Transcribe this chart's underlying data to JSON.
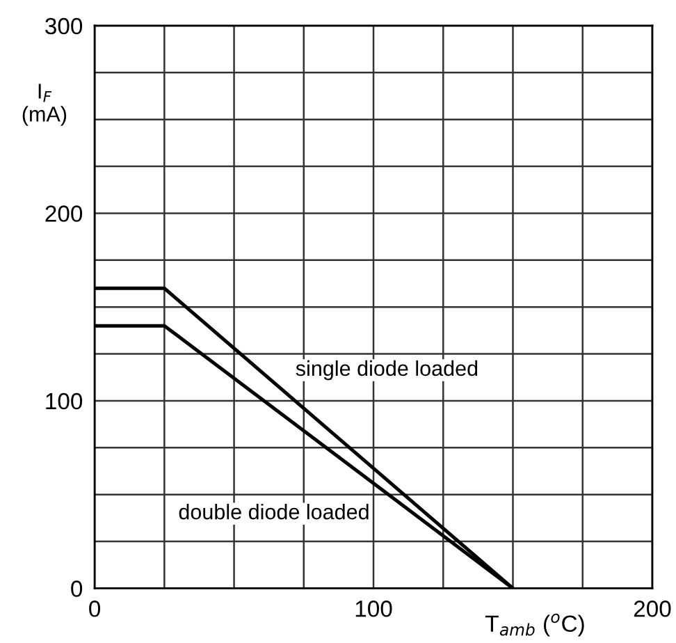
{
  "chart_data": {
    "type": "line",
    "xlabel": "T$_{amb}$ ($^{o}$C)",
    "ylabel": "I$_{F}$\n(mA)",
    "xlim": [
      0,
      200
    ],
    "ylim": [
      0,
      300
    ],
    "xticks": [
      0,
      {
        "value": 25,
        "label": null
      },
      {
        "value": 50,
        "label": null
      },
      {
        "value": 75,
        "label": null
      },
      100,
      {
        "value": 125,
        "label": null
      },
      {
        "value": 150,
        "label": null
      },
      {
        "value": 175,
        "label": null
      },
      200
    ],
    "yticks": [
      0,
      {
        "value": 25,
        "label": null
      },
      {
        "value": 50,
        "label": null
      },
      {
        "value": 75,
        "label": null
      },
      100,
      {
        "value": 125,
        "label": null
      },
      {
        "value": 150,
        "label": null
      },
      {
        "value": 175,
        "label": null
      },
      200,
      {
        "value": 225,
        "label": null
      },
      {
        "value": 250,
        "label": null
      },
      {
        "value": 275,
        "label": null
      },
      300
    ],
    "grid": true,
    "marker": "none",
    "line_style": "solid",
    "legend": false,
    "series": [
      {
        "name": "single diode loaded",
        "color": "#000000",
        "x": [
          0,
          25,
          150
        ],
        "values": [
          160,
          160,
          0
        ]
      },
      {
        "name": "double diode loaded",
        "color": "#000000",
        "x": [
          0,
          25,
          150
        ],
        "values": [
          140,
          140,
          0
        ]
      }
    ]
  }
}
